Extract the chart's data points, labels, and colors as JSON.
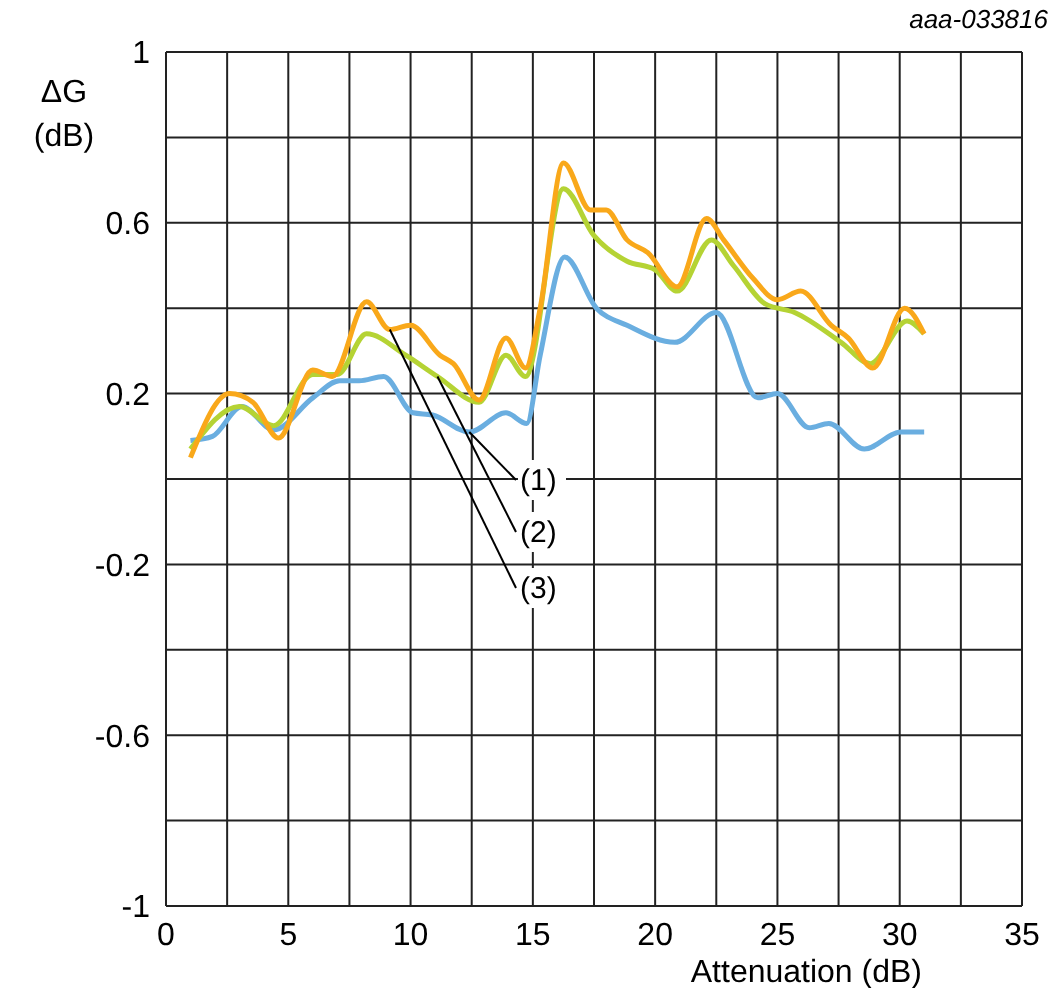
{
  "chart_data": {
    "type": "line",
    "xlabel": "Attenuation (dB)",
    "ylabel": "ΔG (dB)",
    "annotations": [
      "aaa-033816"
    ],
    "xlim": [
      0,
      35
    ],
    "xticks": [
      0,
      {
        "value": 2.5,
        "label": null
      },
      5,
      {
        "value": 7.5,
        "label": null
      },
      10,
      {
        "value": 12.5,
        "label": null
      },
      15,
      {
        "value": 17.5,
        "label": null
      },
      20,
      {
        "value": 22.5,
        "label": null
      },
      25,
      {
        "value": 27.5,
        "label": null
      },
      30,
      {
        "value": 32.5,
        "label": null
      },
      35
    ],
    "ylim": [
      -1,
      1
    ],
    "yticks": [
      -1,
      {
        "value": -0.8,
        "label": null
      },
      -0.6,
      {
        "value": -0.4,
        "label": null
      },
      -0.2,
      {
        "value": 0,
        "label": null
      },
      0.2,
      {
        "value": 0.4,
        "label": null
      },
      0.6,
      {
        "value": 0.8,
        "label": null
      },
      1
    ],
    "grid": true,
    "marker": "none",
    "line_style": "solid",
    "series": [
      {
        "name": "(1)",
        "color": "#6aaee0",
        "x": [
          1.0,
          1.9,
          3.1,
          4.4,
          6.0,
          7.1,
          7.9,
          8.9,
          10.1,
          10.9,
          12.4,
          13.9,
          14.75,
          15.3,
          16.3,
          17.6,
          18.85,
          20.8,
          22.5,
          24.2,
          25.0,
          26.3,
          27.1,
          28.55,
          30.05,
          31.0
        ],
        "values": [
          0.09,
          0.1,
          0.17,
          0.115,
          0.19,
          0.23,
          0.23,
          0.24,
          0.155,
          0.15,
          0.11,
          0.155,
          0.13,
          0.29,
          0.52,
          0.4,
          0.36,
          0.32,
          0.39,
          0.19,
          0.2,
          0.12,
          0.13,
          0.07,
          0.11,
          0.11
        ]
      },
      {
        "name": "(2)",
        "color": "#b5d334",
        "x": [
          1.0,
          3.0,
          4.4,
          6.0,
          7.0,
          8.2,
          9.8,
          11.1,
          12.8,
          13.9,
          14.7,
          16.25,
          17.5,
          18.85,
          20.0,
          20.9,
          22.3,
          23.2,
          24.5,
          25.7,
          27.6,
          28.8,
          30.3,
          31.0
        ],
        "values": [
          0.07,
          0.17,
          0.125,
          0.245,
          0.245,
          0.34,
          0.29,
          0.24,
          0.18,
          0.29,
          0.24,
          0.68,
          0.57,
          0.51,
          0.49,
          0.44,
          0.56,
          0.5,
          0.41,
          0.39,
          0.32,
          0.27,
          0.37,
          0.34
        ]
      },
      {
        "name": "(3)",
        "color": "#f9a81a",
        "x": [
          1.0,
          2.6,
          3.55,
          4.6,
          6.0,
          6.8,
          8.2,
          9.15,
          10.0,
          11.2,
          11.75,
          12.8,
          13.9,
          14.7,
          15.3,
          16.25,
          17.35,
          18.0,
          18.85,
          19.7,
          20.9,
          22.1,
          22.8,
          24.0,
          25.0,
          25.95,
          27.2,
          27.9,
          28.9,
          30.2,
          31.0
        ],
        "values": [
          0.05,
          0.2,
          0.18,
          0.096,
          0.255,
          0.24,
          0.415,
          0.35,
          0.36,
          0.29,
          0.27,
          0.185,
          0.33,
          0.26,
          0.4,
          0.74,
          0.63,
          0.63,
          0.56,
          0.53,
          0.45,
          0.61,
          0.56,
          0.47,
          0.42,
          0.44,
          0.36,
          0.33,
          0.26,
          0.4,
          0.34
        ]
      }
    ]
  }
}
